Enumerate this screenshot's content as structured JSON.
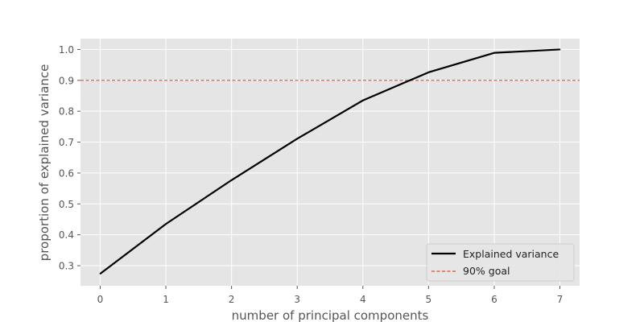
{
  "chart_data": {
    "type": "line",
    "xlabel": "number of principal components",
    "ylabel": "proportion of explained variance",
    "xlim": [
      -0.3,
      7.3
    ],
    "ylim": [
      0.235,
      1.035
    ],
    "x_ticks": [
      0,
      1,
      2,
      3,
      4,
      5,
      6,
      7
    ],
    "y_ticks": [
      0.3,
      0.4,
      0.5,
      0.6,
      0.7,
      0.8,
      0.9,
      1.0
    ],
    "y_tick_labels": [
      "0.3",
      "0.4",
      "0.5",
      "0.6",
      "0.7",
      "0.8",
      "0.9",
      "1.0"
    ],
    "grid": true,
    "style": "ggplot",
    "legend_position": "lower-right",
    "series": [
      {
        "name": "Explained variance",
        "x": [
          0,
          1,
          2,
          3,
          4,
          5,
          6,
          7
        ],
        "values": [
          0.274,
          0.435,
          0.577,
          0.711,
          0.835,
          0.926,
          0.989,
          1.0
        ],
        "color": "#000000",
        "line_style": "solid"
      }
    ],
    "reference_lines": [
      {
        "name": "90% goal",
        "y": 0.9,
        "color": "#e24a33",
        "line_style": "dashed"
      }
    ],
    "colors": {
      "plot_background": "#e5e5e5",
      "grid": "#ffffff"
    }
  }
}
